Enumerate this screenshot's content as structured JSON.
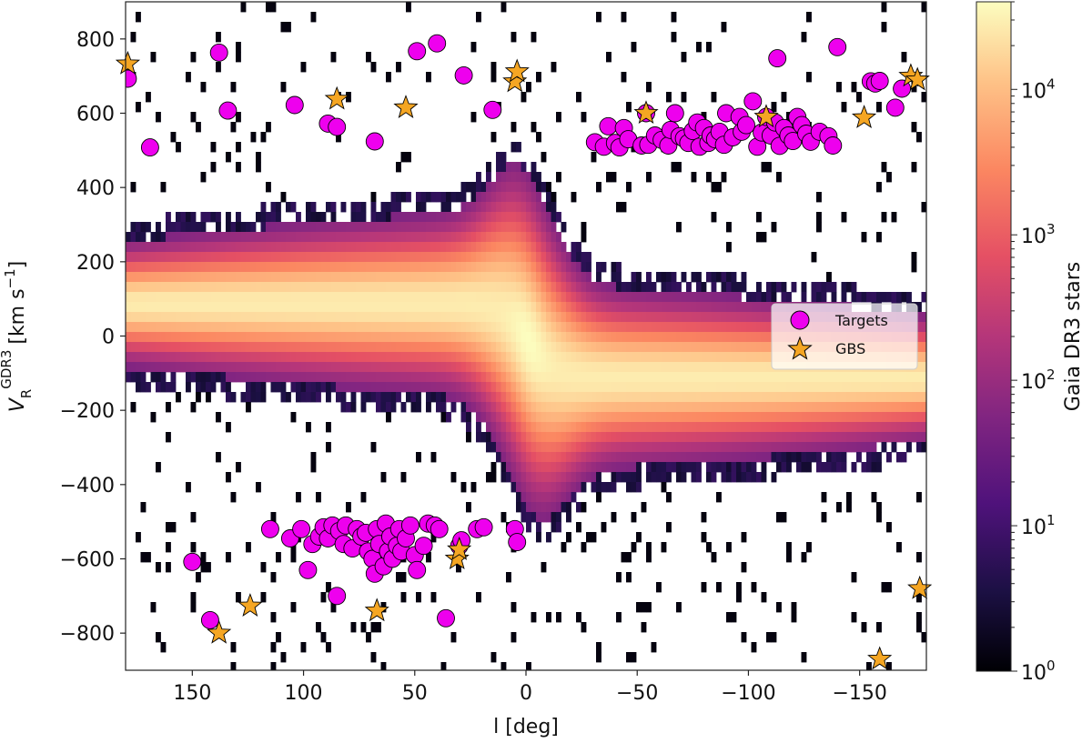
{
  "chart_data": {
    "type": "heatmap",
    "title": "",
    "xlabel": "l [deg]",
    "ylabel_main": "V",
    "ylabel_sub": "R",
    "ylabel_sup": "GDR3",
    "ylabel_units": "[km s",
    "ylabel_units_sup": "−1",
    "ylabel_units_close": "]",
    "xlim": [
      180,
      -180
    ],
    "ylim": [
      -900,
      900
    ],
    "x_ticks": [
      {
        "value": 150,
        "label": "150"
      },
      {
        "value": 100,
        "label": "100"
      },
      {
        "value": 50,
        "label": "50"
      },
      {
        "value": 0,
        "label": "0"
      },
      {
        "value": -50,
        "label": "−50"
      },
      {
        "value": -100,
        "label": "−100"
      },
      {
        "value": -150,
        "label": "−150"
      }
    ],
    "y_ticks": [
      {
        "value": 800,
        "label": "800"
      },
      {
        "value": 600,
        "label": "600"
      },
      {
        "value": 400,
        "label": "400"
      },
      {
        "value": 200,
        "label": "200"
      },
      {
        "value": 0,
        "label": "0"
      },
      {
        "value": -200,
        "label": "−200"
      },
      {
        "value": -400,
        "label": "−400"
      },
      {
        "value": -600,
        "label": "−600"
      },
      {
        "value": -800,
        "label": "−800"
      }
    ],
    "colorbar": {
      "label": "Gaia DR3 stars",
      "scale": "log",
      "range": [
        1,
        40000
      ],
      "ticks": [
        {
          "value": 1,
          "base": "10",
          "exp": "0"
        },
        {
          "value": 10,
          "base": "10",
          "exp": "1"
        },
        {
          "value": 100,
          "base": "10",
          "exp": "2"
        },
        {
          "value": 1000,
          "base": "10",
          "exp": "3"
        },
        {
          "value": 10000,
          "base": "10",
          "exp": "4"
        }
      ],
      "colormap": [
        "#000004",
        "#2c115f",
        "#721f81",
        "#b73779",
        "#f1605d",
        "#feb078",
        "#fcfdbf"
      ]
    },
    "legend": {
      "position": "center-right",
      "entries": [
        {
          "label": "Targets",
          "marker": "circle",
          "color": "#ee00ee"
        },
        {
          "label": "GBS",
          "marker": "star",
          "color": "#f5a623"
        }
      ]
    },
    "series": [
      {
        "name": "Targets",
        "marker": "circle",
        "color": "#ee00ee",
        "points": [
          [
            179,
            693
          ],
          [
            169,
            508
          ],
          [
            138,
            763
          ],
          [
            134,
            607
          ],
          [
            104,
            622
          ],
          [
            89,
            572
          ],
          [
            85,
            563
          ],
          [
            68,
            524
          ],
          [
            49,
            767
          ],
          [
            40,
            788
          ],
          [
            28,
            702
          ],
          [
            15,
            609
          ],
          [
            -31,
            522
          ],
          [
            -35,
            510
          ],
          [
            -37,
            565
          ],
          [
            -40,
            520
          ],
          [
            -42,
            508
          ],
          [
            -44,
            560
          ],
          [
            -46,
            530
          ],
          [
            -52,
            513
          ],
          [
            -54,
            600
          ],
          [
            -55,
            515
          ],
          [
            -58,
            540
          ],
          [
            -61,
            528
          ],
          [
            -64,
            513
          ],
          [
            -65,
            555
          ],
          [
            -67,
            600
          ],
          [
            -69,
            538
          ],
          [
            -71,
            532
          ],
          [
            -73,
            520
          ],
          [
            -75,
            552
          ],
          [
            -77,
            575
          ],
          [
            -78,
            510
          ],
          [
            -80,
            560
          ],
          [
            -82,
            520
          ],
          [
            -83,
            540
          ],
          [
            -85,
            530
          ],
          [
            -87,
            550
          ],
          [
            -89,
            515
          ],
          [
            -90,
            600
          ],
          [
            -93,
            535
          ],
          [
            -96,
            590
          ],
          [
            -97,
            550
          ],
          [
            -99,
            568
          ],
          [
            -102,
            632
          ],
          [
            -104,
            510
          ],
          [
            -106,
            548
          ],
          [
            -108,
            590
          ],
          [
            -110,
            540
          ],
          [
            -112,
            575
          ],
          [
            -114,
            512
          ],
          [
            -116,
            560
          ],
          [
            -118,
            540
          ],
          [
            -120,
            525
          ],
          [
            -122,
            590
          ],
          [
            -124,
            568
          ],
          [
            -126,
            545
          ],
          [
            -128,
            523
          ],
          [
            -132,
            550
          ],
          [
            -136,
            538
          ],
          [
            -138,
            513
          ],
          [
            -140,
            778
          ],
          [
            -155,
            686
          ],
          [
            -157,
            680
          ],
          [
            -159,
            687
          ],
          [
            -166,
            615
          ],
          [
            -169,
            666
          ],
          [
            -113,
            748
          ],
          [
            150,
            -608
          ],
          [
            142,
            -765
          ],
          [
            115,
            -520
          ],
          [
            106,
            -545
          ],
          [
            101,
            -520
          ],
          [
            98,
            -630
          ],
          [
            96,
            -560
          ],
          [
            93,
            -540
          ],
          [
            91,
            -515
          ],
          [
            89,
            -545
          ],
          [
            87,
            -510
          ],
          [
            85,
            -700
          ],
          [
            84,
            -525
          ],
          [
            82,
            -560
          ],
          [
            81,
            -510
          ],
          [
            78,
            -572
          ],
          [
            76,
            -520
          ],
          [
            74,
            -540
          ],
          [
            72,
            -530
          ],
          [
            71,
            -580
          ],
          [
            69,
            -600
          ],
          [
            68,
            -640
          ],
          [
            67,
            -520
          ],
          [
            66,
            -560
          ],
          [
            64,
            -620
          ],
          [
            63,
            -505
          ],
          [
            62,
            -580
          ],
          [
            61,
            -540
          ],
          [
            60,
            -600
          ],
          [
            58,
            -565
          ],
          [
            57,
            -520
          ],
          [
            56,
            -580
          ],
          [
            54,
            -545
          ],
          [
            52,
            -510
          ],
          [
            50,
            -590
          ],
          [
            49,
            -630
          ],
          [
            46,
            -565
          ],
          [
            44,
            -505
          ],
          [
            41,
            -510
          ],
          [
            39,
            -520
          ],
          [
            36,
            -760
          ],
          [
            30,
            -565
          ],
          [
            29,
            -550
          ],
          [
            22,
            -520
          ],
          [
            19,
            -515
          ],
          [
            5,
            -520
          ],
          [
            4,
            -555
          ]
        ]
      },
      {
        "name": "GBS",
        "marker": "star",
        "color": "#f5a623",
        "points": [
          [
            179,
            733
          ],
          [
            85,
            638
          ],
          [
            54,
            615
          ],
          [
            5,
            685
          ],
          [
            4,
            712
          ],
          [
            -54,
            600
          ],
          [
            -108,
            590
          ],
          [
            -152,
            588
          ],
          [
            -173,
            700
          ],
          [
            -176,
            690
          ],
          [
            -159,
            -870
          ],
          [
            -177,
            -680
          ],
          [
            138,
            -800
          ],
          [
            124,
            -727
          ],
          [
            67,
            -740
          ],
          [
            31,
            -600
          ],
          [
            30,
            -575
          ]
        ]
      }
    ]
  }
}
